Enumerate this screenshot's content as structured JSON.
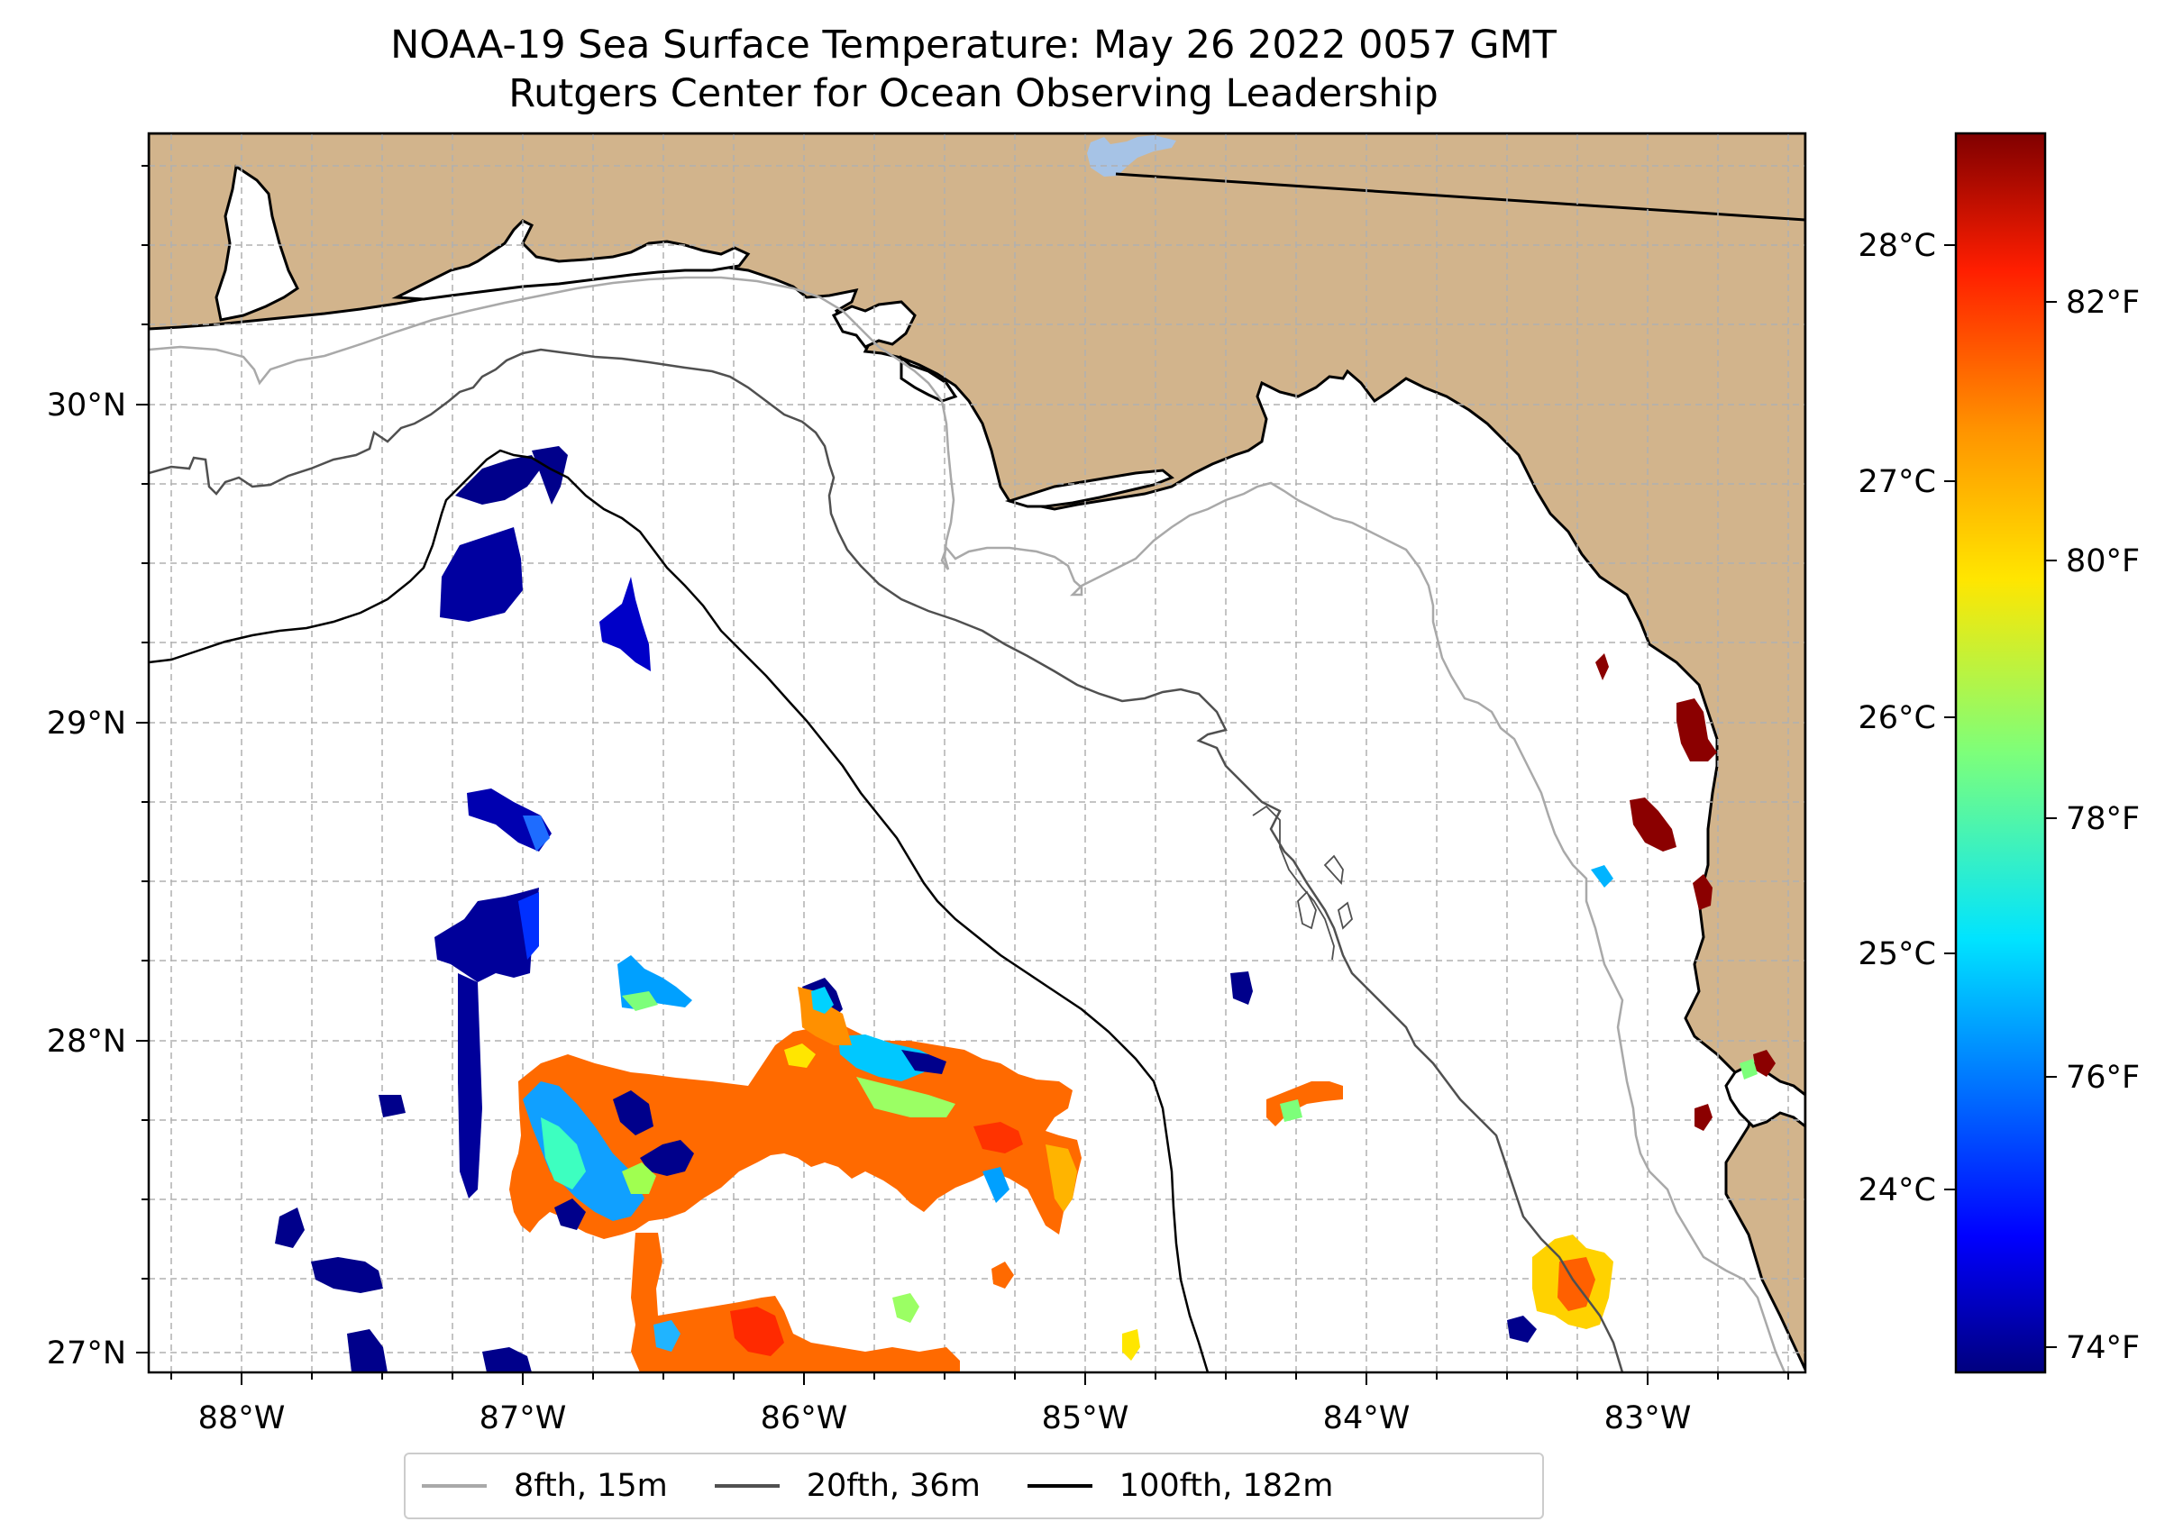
{
  "title": {
    "line1": "NOAA-19 Sea Surface Temperature: May 26 2022 0057 GMT",
    "line2": "Rutgers Center for Ocean Observing Leadership"
  },
  "map": {
    "lon_ticks": [
      "88°W",
      "87°W",
      "86°W",
      "85°W",
      "84°W",
      "83°W"
    ],
    "lat_ticks": [
      "30°N",
      "29°N",
      "28°N",
      "27°N"
    ],
    "land_color": "#D2B48C",
    "water_body_color": "#A6C3E6"
  },
  "colorbar": {
    "colormap": "jet",
    "celsius_ticks": [
      "28°C",
      "27°C",
      "26°C",
      "25°C",
      "24°C"
    ],
    "fahrenheit_ticks": [
      "82°F",
      "80°F",
      "78°F",
      "76°F",
      "74°F"
    ],
    "range_f": [
      73.6,
      83.4
    ]
  },
  "legend": {
    "items": [
      {
        "label": "8fth, 15m",
        "color": "#A9A9A9"
      },
      {
        "label": "20fth, 36m",
        "color": "#505050"
      },
      {
        "label": "100fth, 182m",
        "color": "#000000"
      }
    ]
  }
}
